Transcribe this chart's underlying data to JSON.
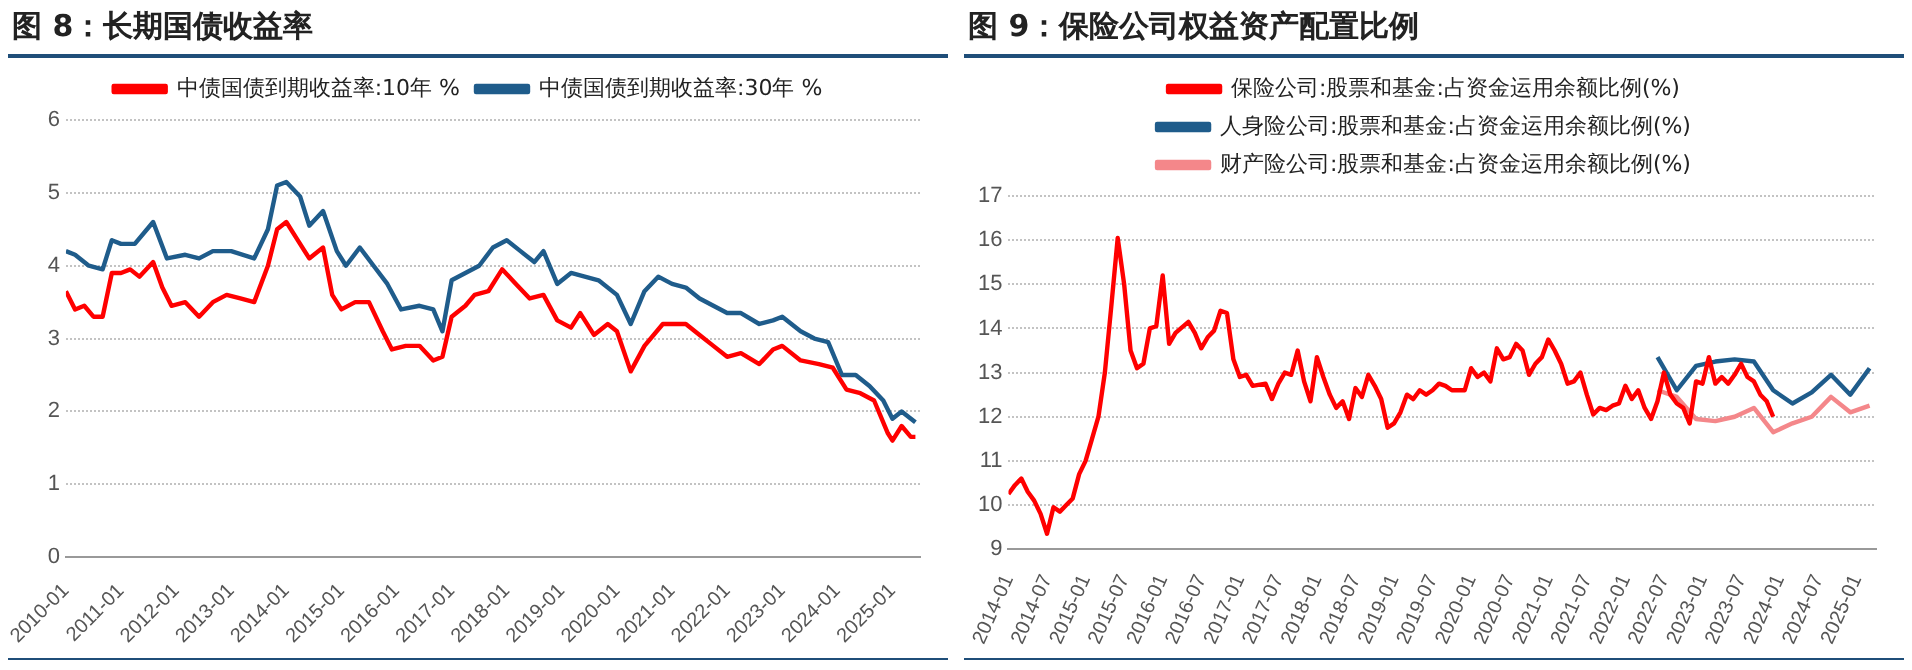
{
  "chart_data": [
    {
      "type": "line",
      "title": "图 8：长期国债收益率",
      "xlim": [
        "2010-01",
        "2025-07"
      ],
      "xticks": [
        "2010-01",
        "2011-01",
        "2012-01",
        "2013-01",
        "2014-01",
        "2015-01",
        "2016-01",
        "2017-01",
        "2018-01",
        "2019-01",
        "2020-01",
        "2021-01",
        "2022-01",
        "2023-01",
        "2024-01",
        "2025-01"
      ],
      "ylim": [
        0,
        6
      ],
      "yticks": [
        0,
        1,
        2,
        3,
        4,
        5,
        6
      ],
      "grid": "y",
      "legend": "top",
      "line_style": "solid",
      "marker": "none",
      "series": [
        {
          "name": "中债国债到期收益率:10年 %",
          "color": "#ff0000",
          "x": [
            "2010-01",
            "2010-03",
            "2010-05",
            "2010-07",
            "2010-09",
            "2010-11",
            "2011-01",
            "2011-03",
            "2011-05",
            "2011-08",
            "2011-10",
            "2011-12",
            "2012-03",
            "2012-06",
            "2012-09",
            "2012-12",
            "2013-03",
            "2013-06",
            "2013-09",
            "2013-11",
            "2014-01",
            "2014-03",
            "2014-06",
            "2014-09",
            "2014-11",
            "2015-01",
            "2015-04",
            "2015-07",
            "2015-10",
            "2015-12",
            "2016-03",
            "2016-06",
            "2016-09",
            "2016-11",
            "2017-01",
            "2017-04",
            "2017-06",
            "2017-09",
            "2017-12",
            "2018-03",
            "2018-06",
            "2018-09",
            "2018-12",
            "2019-03",
            "2019-05",
            "2019-08",
            "2019-11",
            "2020-01",
            "2020-04",
            "2020-07",
            "2020-11",
            "2021-01",
            "2021-04",
            "2021-07",
            "2021-10",
            "2022-01",
            "2022-04",
            "2022-08",
            "2022-11",
            "2023-01",
            "2023-05",
            "2023-09",
            "2023-12",
            "2024-03",
            "2024-06",
            "2024-09",
            "2024-12",
            "2025-01",
            "2025-03",
            "2025-05",
            "2025-06"
          ],
          "values": [
            3.65,
            3.4,
            3.45,
            3.3,
            3.3,
            3.9,
            3.9,
            3.95,
            3.85,
            4.05,
            3.7,
            3.45,
            3.5,
            3.3,
            3.5,
            3.6,
            3.55,
            3.5,
            4.0,
            4.5,
            4.6,
            4.4,
            4.1,
            4.25,
            3.6,
            3.4,
            3.5,
            3.5,
            3.1,
            2.85,
            2.9,
            2.9,
            2.7,
            2.75,
            3.3,
            3.45,
            3.6,
            3.65,
            3.95,
            3.75,
            3.55,
            3.6,
            3.25,
            3.15,
            3.35,
            3.05,
            3.2,
            3.1,
            2.55,
            2.9,
            3.2,
            3.2,
            3.2,
            3.05,
            2.9,
            2.75,
            2.8,
            2.65,
            2.85,
            2.9,
            2.7,
            2.65,
            2.6,
            2.3,
            2.25,
            2.15,
            1.7,
            1.6,
            1.8,
            1.65,
            1.65
          ]
        },
        {
          "name": "中债国债到期收益率:30年 %",
          "color": "#1f5c8b",
          "x": [
            "2010-01",
            "2010-03",
            "2010-06",
            "2010-09",
            "2010-11",
            "2011-01",
            "2011-04",
            "2011-08",
            "2011-11",
            "2012-03",
            "2012-06",
            "2012-09",
            "2013-01",
            "2013-06",
            "2013-09",
            "2013-11",
            "2014-01",
            "2014-04",
            "2014-06",
            "2014-09",
            "2014-12",
            "2015-02",
            "2015-05",
            "2015-08",
            "2015-11",
            "2016-02",
            "2016-06",
            "2016-09",
            "2016-11",
            "2017-01",
            "2017-04",
            "2017-07",
            "2017-10",
            "2018-01",
            "2018-04",
            "2018-07",
            "2018-09",
            "2018-12",
            "2019-03",
            "2019-06",
            "2019-09",
            "2020-01",
            "2020-04",
            "2020-07",
            "2020-10",
            "2021-01",
            "2021-04",
            "2021-07",
            "2021-10",
            "2022-01",
            "2022-04",
            "2022-08",
            "2022-11",
            "2023-01",
            "2023-05",
            "2023-08",
            "2023-11",
            "2024-02",
            "2024-05",
            "2024-08",
            "2024-11",
            "2025-01",
            "2025-03",
            "2025-06"
          ],
          "values": [
            4.2,
            4.15,
            4.0,
            3.95,
            4.35,
            4.3,
            4.3,
            4.6,
            4.1,
            4.15,
            4.1,
            4.2,
            4.2,
            4.1,
            4.5,
            5.1,
            5.15,
            4.95,
            4.55,
            4.75,
            4.2,
            4.0,
            4.25,
            4.0,
            3.75,
            3.4,
            3.45,
            3.4,
            3.1,
            3.8,
            3.9,
            4.0,
            4.25,
            4.35,
            4.2,
            4.05,
            4.2,
            3.75,
            3.9,
            3.85,
            3.8,
            3.6,
            3.2,
            3.65,
            3.85,
            3.75,
            3.7,
            3.55,
            3.45,
            3.35,
            3.35,
            3.2,
            3.25,
            3.3,
            3.1,
            3.0,
            2.95,
            2.5,
            2.5,
            2.35,
            2.15,
            1.9,
            2.0,
            1.85
          ]
        }
      ]
    },
    {
      "type": "line",
      "title": "图 9：保险公司权益资产配置比例",
      "xlim": [
        "2014-01",
        "2025-04"
      ],
      "xticks": [
        "2014-01",
        "2014-07",
        "2015-01",
        "2015-07",
        "2016-01",
        "2016-07",
        "2017-01",
        "2017-07",
        "2018-01",
        "2018-07",
        "2019-01",
        "2019-07",
        "2020-01",
        "2020-07",
        "2021-01",
        "2021-07",
        "2022-01",
        "2022-07",
        "2023-01",
        "2023-07",
        "2024-01",
        "2024-07",
        "2025-01"
      ],
      "ylim": [
        9,
        17
      ],
      "yticks": [
        9,
        10,
        11,
        12,
        13,
        14,
        15,
        16,
        17
      ],
      "grid": "y",
      "legend": "top",
      "line_style": "solid",
      "marker": "none",
      "series": [
        {
          "name": "保险公司:股票和基金:占资金运用余额比例(%)",
          "color": "#ff0000",
          "x": [
            "2014-01",
            "2014-02",
            "2014-03",
            "2014-04",
            "2014-05",
            "2014-06",
            "2014-07",
            "2014-08",
            "2014-09",
            "2014-10",
            "2014-11",
            "2014-12",
            "2015-01",
            "2015-02",
            "2015-03",
            "2015-04",
            "2015-05",
            "2015-06",
            "2015-07",
            "2015-08",
            "2015-09",
            "2015-10",
            "2015-11",
            "2015-12",
            "2016-01",
            "2016-02",
            "2016-03",
            "2016-05",
            "2016-06",
            "2016-07",
            "2016-08",
            "2016-09",
            "2016-10",
            "2016-11",
            "2016-12",
            "2017-01",
            "2017-02",
            "2017-03",
            "2017-05",
            "2017-06",
            "2017-07",
            "2017-08",
            "2017-09",
            "2017-10",
            "2017-11",
            "2017-12",
            "2018-01",
            "2018-02",
            "2018-03",
            "2018-04",
            "2018-05",
            "2018-06",
            "2018-07",
            "2018-08",
            "2018-09",
            "2018-10",
            "2018-11",
            "2018-12",
            "2019-01",
            "2019-02",
            "2019-03",
            "2019-04",
            "2019-05",
            "2019-06",
            "2019-07",
            "2019-08",
            "2019-09",
            "2019-10",
            "2019-12",
            "2020-01",
            "2020-02",
            "2020-03",
            "2020-04",
            "2020-05",
            "2020-06",
            "2020-07",
            "2020-08",
            "2020-09",
            "2020-10",
            "2020-11",
            "2020-12",
            "2021-01",
            "2021-02",
            "2021-03",
            "2021-04",
            "2021-05",
            "2021-06",
            "2021-07",
            "2021-08",
            "2021-09",
            "2021-10",
            "2021-11",
            "2021-12",
            "2022-01",
            "2022-02",
            "2022-03",
            "2022-04",
            "2022-05",
            "2022-06",
            "2022-07",
            "2022-08",
            "2022-09",
            "2022-10",
            "2022-11",
            "2022-12",
            "2023-01",
            "2023-02",
            "2023-03",
            "2023-04",
            "2023-05",
            "2023-06",
            "2023-07",
            "2023-08",
            "2023-09",
            "2023-10",
            "2023-11",
            "2023-12"
          ],
          "values": [
            10.25,
            10.45,
            10.6,
            10.3,
            10.1,
            9.8,
            9.35,
            9.95,
            9.85,
            10.0,
            10.15,
            10.7,
            11.0,
            11.5,
            12.0,
            13.0,
            14.5,
            16.05,
            15.0,
            13.5,
            13.1,
            13.2,
            14.0,
            14.05,
            15.2,
            13.65,
            13.9,
            14.15,
            13.9,
            13.55,
            13.8,
            13.95,
            14.4,
            14.35,
            13.3,
            12.9,
            12.95,
            12.7,
            12.75,
            12.4,
            12.75,
            13.0,
            12.95,
            13.5,
            12.8,
            12.35,
            13.35,
            12.9,
            12.5,
            12.2,
            12.35,
            11.95,
            12.65,
            12.45,
            12.95,
            12.7,
            12.4,
            11.75,
            11.85,
            12.1,
            12.5,
            12.4,
            12.6,
            12.5,
            12.6,
            12.75,
            12.7,
            12.6,
            12.6,
            13.1,
            12.9,
            13.0,
            12.8,
            13.55,
            13.3,
            13.35,
            13.65,
            13.5,
            12.95,
            13.2,
            13.35,
            13.75,
            13.5,
            13.2,
            12.75,
            12.8,
            13.0,
            12.5,
            12.05,
            12.2,
            12.15,
            12.25,
            12.3,
            12.7,
            12.4,
            12.6,
            12.2,
            11.95,
            12.35,
            13.0,
            12.5,
            12.3,
            12.2,
            11.85,
            12.8,
            12.75,
            13.35,
            12.75,
            12.9,
            12.75,
            12.95,
            13.2,
            12.9,
            12.8,
            12.5,
            12.35,
            12.0
          ]
        },
        {
          "name": "人身险公司:股票和基金:占资金运用余额比例(%)",
          "color": "#1f5c8b",
          "x": [
            "2022-06",
            "2022-09",
            "2022-12",
            "2023-03",
            "2023-06",
            "2023-09",
            "2023-12",
            "2024-03",
            "2024-06",
            "2024-09",
            "2024-12",
            "2025-03"
          ],
          "values": [
            13.35,
            12.6,
            13.15,
            13.25,
            13.3,
            13.25,
            12.6,
            12.3,
            12.55,
            12.95,
            12.5,
            13.1
          ]
        },
        {
          "name": "财产险公司:股票和基金:占资金运用余额比例(%)",
          "color": "#f4878a",
          "x": [
            "2022-06",
            "2022-09",
            "2022-12",
            "2023-03",
            "2023-06",
            "2023-09",
            "2023-12",
            "2024-03",
            "2024-06",
            "2024-09",
            "2024-12",
            "2025-03"
          ],
          "values": [
            12.6,
            12.45,
            11.95,
            11.9,
            12.0,
            12.2,
            11.65,
            11.85,
            12.0,
            12.45,
            12.1,
            12.25
          ]
        }
      ]
    }
  ]
}
